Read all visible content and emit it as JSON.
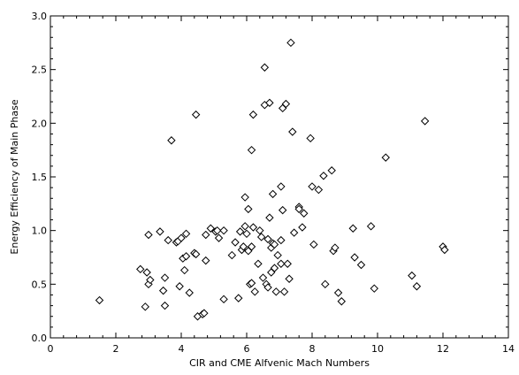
{
  "chart_data": {
    "type": "scatter",
    "title": "",
    "xlabel": "CIR and CME Alfvenic Mach Numbers",
    "ylabel": "Energy Efficiency of Main Phase",
    "xlim": [
      0,
      14
    ],
    "ylim": [
      0,
      3
    ],
    "xticks": [
      0,
      2,
      4,
      6,
      8,
      10,
      12,
      14
    ],
    "xtick_labels": [
      "0",
      "2",
      "4",
      "6",
      "8",
      "10",
      "12",
      "14"
    ],
    "yticks": [
      0,
      0.5,
      1,
      1.5,
      2,
      2.5,
      3
    ],
    "ytick_labels": [
      "0.0",
      "0.5",
      "1.0",
      "1.5",
      "2.0",
      "2.5",
      "3.0"
    ],
    "grid": false,
    "legend": "none",
    "marker": "diamond-open",
    "points": [
      [
        1.5,
        0.35
      ],
      [
        2.75,
        0.64
      ],
      [
        2.9,
        0.29
      ],
      [
        2.95,
        0.61
      ],
      [
        3.0,
        0.5
      ],
      [
        3.0,
        0.96
      ],
      [
        3.05,
        0.54
      ],
      [
        3.35,
        0.99
      ],
      [
        3.45,
        0.44
      ],
      [
        3.5,
        0.56
      ],
      [
        3.5,
        0.3
      ],
      [
        3.6,
        0.91
      ],
      [
        3.7,
        1.84
      ],
      [
        3.85,
        0.89
      ],
      [
        3.9,
        0.9
      ],
      [
        3.95,
        0.48
      ],
      [
        4.0,
        0.93
      ],
      [
        4.05,
        0.74
      ],
      [
        4.1,
        0.63
      ],
      [
        4.15,
        0.76
      ],
      [
        4.15,
        0.97
      ],
      [
        4.25,
        0.42
      ],
      [
        4.4,
        0.79
      ],
      [
        4.45,
        2.08
      ],
      [
        4.45,
        0.78
      ],
      [
        4.5,
        0.2
      ],
      [
        4.65,
        0.22
      ],
      [
        4.7,
        0.23
      ],
      [
        4.75,
        0.96
      ],
      [
        4.75,
        0.72
      ],
      [
        4.9,
        1.02
      ],
      [
        5.05,
        0.99
      ],
      [
        5.1,
        1.0
      ],
      [
        5.15,
        0.93
      ],
      [
        5.3,
        1.0
      ],
      [
        5.3,
        0.36
      ],
      [
        5.55,
        0.77
      ],
      [
        5.65,
        0.89
      ],
      [
        5.75,
        0.37
      ],
      [
        5.8,
        0.99
      ],
      [
        5.85,
        0.82
      ],
      [
        5.9,
        0.85
      ],
      [
        5.95,
        1.31
      ],
      [
        5.95,
        1.04
      ],
      [
        6.0,
        0.97
      ],
      [
        6.05,
        0.81
      ],
      [
        6.05,
        1.2
      ],
      [
        6.1,
        0.5
      ],
      [
        6.15,
        0.85
      ],
      [
        6.15,
        1.75
      ],
      [
        6.15,
        0.51
      ],
      [
        6.2,
        2.08
      ],
      [
        6.2,
        1.03
      ],
      [
        6.25,
        0.43
      ],
      [
        6.35,
        0.69
      ],
      [
        6.4,
        1.0
      ],
      [
        6.45,
        0.94
      ],
      [
        6.5,
        0.56
      ],
      [
        6.55,
        2.52
      ],
      [
        6.55,
        2.17
      ],
      [
        6.6,
        0.5
      ],
      [
        6.65,
        0.92
      ],
      [
        6.65,
        0.47
      ],
      [
        6.7,
        2.19
      ],
      [
        6.7,
        1.12
      ],
      [
        6.75,
        0.61
      ],
      [
        6.75,
        0.84
      ],
      [
        6.8,
        1.34
      ],
      [
        6.8,
        0.88
      ],
      [
        6.85,
        0.87
      ],
      [
        6.85,
        0.65
      ],
      [
        6.9,
        0.43
      ],
      [
        6.95,
        0.77
      ],
      [
        7.05,
        1.41
      ],
      [
        7.05,
        0.91
      ],
      [
        7.05,
        0.69
      ],
      [
        7.1,
        2.14
      ],
      [
        7.1,
        1.19
      ],
      [
        7.15,
        0.43
      ],
      [
        7.2,
        2.18
      ],
      [
        7.25,
        0.69
      ],
      [
        7.3,
        0.55
      ],
      [
        7.35,
        2.75
      ],
      [
        7.4,
        1.92
      ],
      [
        7.45,
        0.98
      ],
      [
        7.6,
        1.22
      ],
      [
        7.6,
        1.2
      ],
      [
        7.7,
        1.03
      ],
      [
        7.75,
        1.16
      ],
      [
        7.95,
        1.86
      ],
      [
        8.0,
        1.41
      ],
      [
        8.05,
        0.87
      ],
      [
        8.2,
        1.38
      ],
      [
        8.35,
        1.51
      ],
      [
        8.4,
        0.5
      ],
      [
        8.6,
        1.56
      ],
      [
        8.65,
        0.81
      ],
      [
        8.7,
        0.84
      ],
      [
        8.8,
        0.42
      ],
      [
        8.9,
        0.34
      ],
      [
        9.25,
        1.02
      ],
      [
        9.3,
        0.75
      ],
      [
        9.5,
        0.68
      ],
      [
        9.8,
        1.04
      ],
      [
        9.9,
        0.46
      ],
      [
        10.25,
        1.68
      ],
      [
        11.05,
        0.58
      ],
      [
        11.2,
        0.48
      ],
      [
        11.45,
        2.02
      ],
      [
        12.0,
        0.85
      ],
      [
        12.05,
        0.82
      ]
    ]
  }
}
